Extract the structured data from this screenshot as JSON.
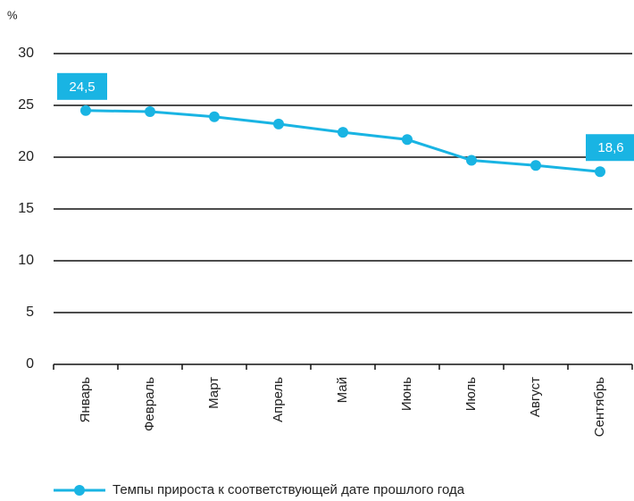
{
  "chart_data": {
    "type": "line",
    "y_unit_label": "%",
    "categories": [
      "Январь",
      "Февраль",
      "Март",
      "Апрель",
      "Май",
      "Июнь",
      "Июль",
      "Август",
      "Сентябрь"
    ],
    "series": [
      {
        "name": "Темпы прироста к соответствующей дате прошлого года",
        "color": "#19b4e3",
        "values": [
          24.5,
          24.4,
          23.9,
          23.2,
          22.4,
          21.7,
          19.7,
          19.2,
          18.6
        ],
        "value_labels": [
          "24,5",
          null,
          null,
          null,
          null,
          null,
          null,
          null,
          "18,6"
        ]
      }
    ],
    "ylim": [
      0,
      30
    ],
    "yticks": [
      0,
      5,
      10,
      15,
      20,
      25,
      30
    ],
    "grid": true,
    "legend": "bottom"
  }
}
